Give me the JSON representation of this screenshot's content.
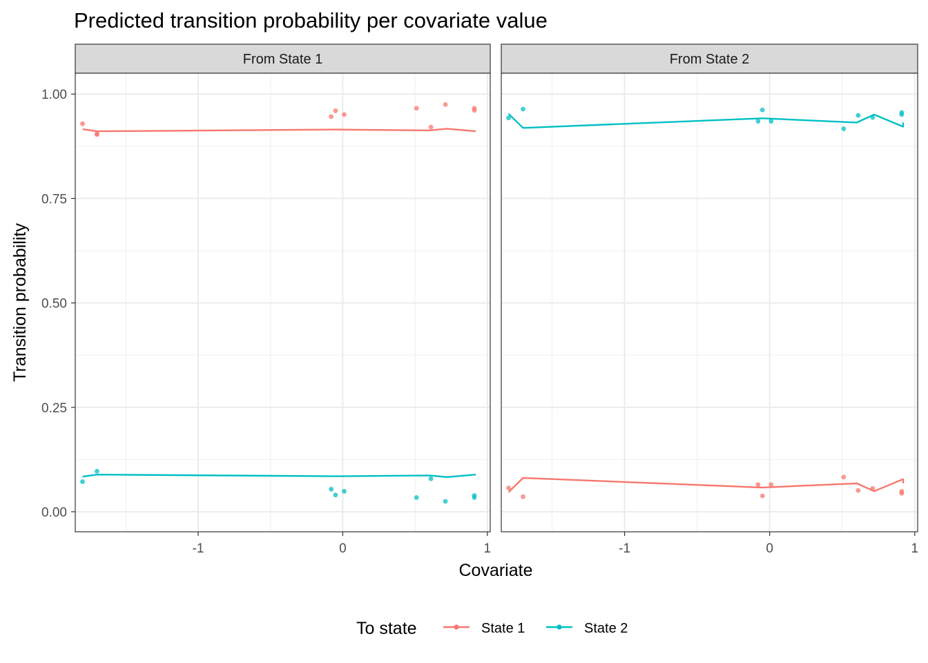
{
  "chart_data": {
    "type": "line",
    "title": "Predicted transition probability per covariate value",
    "xlabel": "Covariate",
    "ylabel": "Transition probability",
    "xlim": [
      -1.85,
      1.02
    ],
    "ylim": [
      -0.048,
      1.05
    ],
    "x_ticks": [
      {
        "v": -1,
        "label": "-1"
      },
      {
        "v": 0,
        "label": "0"
      },
      {
        "v": 1,
        "label": "1"
      }
    ],
    "y_ticks": [
      {
        "v": 0,
        "label": "0.00"
      },
      {
        "v": 0.25,
        "label": "0.25"
      },
      {
        "v": 0.5,
        "label": "0.50"
      },
      {
        "v": 0.75,
        "label": "0.75"
      },
      {
        "v": 1,
        "label": "1.00"
      }
    ],
    "grid": true,
    "legend": {
      "title": "To state",
      "position": "bottom",
      "entries": [
        {
          "label": "State 1",
          "color": "#F8766D"
        },
        {
          "label": "State 2",
          "color": "#00BFC4"
        }
      ]
    },
    "panels": [
      {
        "strip": "From State 1",
        "series": [
          {
            "name": "State 1",
            "color": "#F8766D",
            "line": {
              "x": [
                -1.8,
                -1.7,
                -0.05,
                0.6,
                0.72,
                0.92
              ],
              "y": [
                0.916,
                0.911,
                0.915,
                0.913,
                0.917,
                0.911
              ]
            },
            "points": {
              "x": [
                -1.8,
                -1.7,
                -1.7,
                -0.08,
                -0.05,
                0.01,
                0.51,
                0.61,
                0.71,
                0.91,
                0.91
              ],
              "y": [
                0.929,
                0.905,
                0.903,
                0.946,
                0.96,
                0.951,
                0.966,
                0.921,
                0.975,
                0.961,
                0.966
              ]
            }
          },
          {
            "name": "State 2",
            "color": "#00BFC4",
            "line": {
              "x": [
                -1.8,
                -1.7,
                -0.05,
                0.6,
                0.72,
                0.92
              ],
              "y": [
                0.084,
                0.089,
                0.085,
                0.087,
                0.083,
                0.089
              ]
            },
            "points": {
              "x": [
                -1.8,
                -1.7,
                -0.08,
                -0.05,
                0.01,
                0.51,
                0.61,
                0.71,
                0.91,
                0.91
              ],
              "y": [
                0.072,
                0.097,
                0.054,
                0.04,
                0.049,
                0.034,
                0.079,
                0.025,
                0.039,
                0.034
              ]
            }
          }
        ]
      },
      {
        "strip": "From State 2",
        "series": [
          {
            "name": "State 1",
            "color": "#F8766D",
            "line": {
              "x": [
                -1.8,
                -1.7,
                -0.05,
                0.6,
                0.72,
                0.92,
                0.92
              ],
              "y": [
                0.047,
                0.081,
                0.058,
                0.068,
                0.049,
                0.078,
                0.068
              ]
            },
            "points": {
              "x": [
                -1.8,
                -1.7,
                -0.08,
                -0.05,
                0.01,
                0.51,
                0.61,
                0.71,
                0.91,
                0.91
              ],
              "y": [
                0.057,
                0.036,
                0.065,
                0.038,
                0.065,
                0.083,
                0.051,
                0.056,
                0.044,
                0.049
              ]
            }
          },
          {
            "name": "State 2",
            "color": "#00BFC4",
            "line": {
              "x": [
                -1.8,
                -1.7,
                -0.05,
                0.6,
                0.72,
                0.92,
                0.92
              ],
              "y": [
                0.953,
                0.919,
                0.942,
                0.932,
                0.951,
                0.922,
                0.932
              ]
            },
            "points": {
              "x": [
                -1.8,
                -1.7,
                -0.08,
                -0.05,
                0.01,
                0.51,
                0.61,
                0.71,
                0.91,
                0.91
              ],
              "y": [
                0.943,
                0.964,
                0.935,
                0.962,
                0.935,
                0.917,
                0.949,
                0.944,
                0.956,
                0.951
              ]
            }
          }
        ]
      }
    ]
  }
}
